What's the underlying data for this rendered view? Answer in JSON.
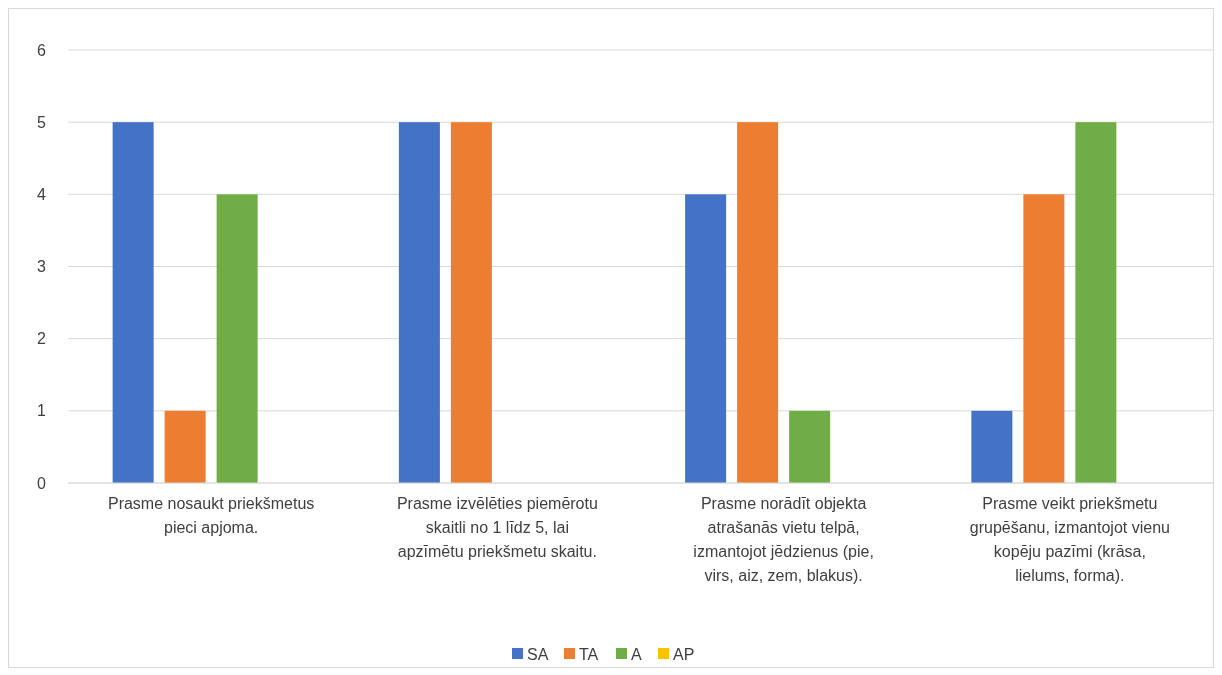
{
  "chart_data": {
    "type": "bar",
    "categories": [
      "Prasme nosaukt priekšmetus pieci apjoma.",
      "Prasme izvēlēties piemērotu skaitli no 1 līdz 5, lai apzīmētu priekšmetu skaitu.",
      "Prasme norādīt objekta atrašanās vietu telpā, izmantojot jēdzienus (pie, virs, aiz, zem, blakus).",
      "Prasme veikt priekšmetu grupēšanu, izmantojot vienu kopēju pazīmi (krāsa, lielums, forma)."
    ],
    "series": [
      {
        "name": "SA",
        "color": "#4472c4",
        "values": [
          5,
          5,
          4,
          1
        ]
      },
      {
        "name": "TA",
        "color": "#ed7d31",
        "values": [
          1,
          5,
          5,
          4
        ]
      },
      {
        "name": "A",
        "color": "#70ad47",
        "values": [
          4,
          0,
          1,
          5
        ]
      },
      {
        "name": "AP",
        "color": "#ffc000",
        "values": [
          0,
          0,
          0,
          0
        ]
      }
    ],
    "ylim": [
      0,
      6
    ],
    "yticks": [
      0,
      1,
      2,
      3,
      4,
      5,
      6
    ],
    "grid": "y",
    "legend": "bottom"
  }
}
